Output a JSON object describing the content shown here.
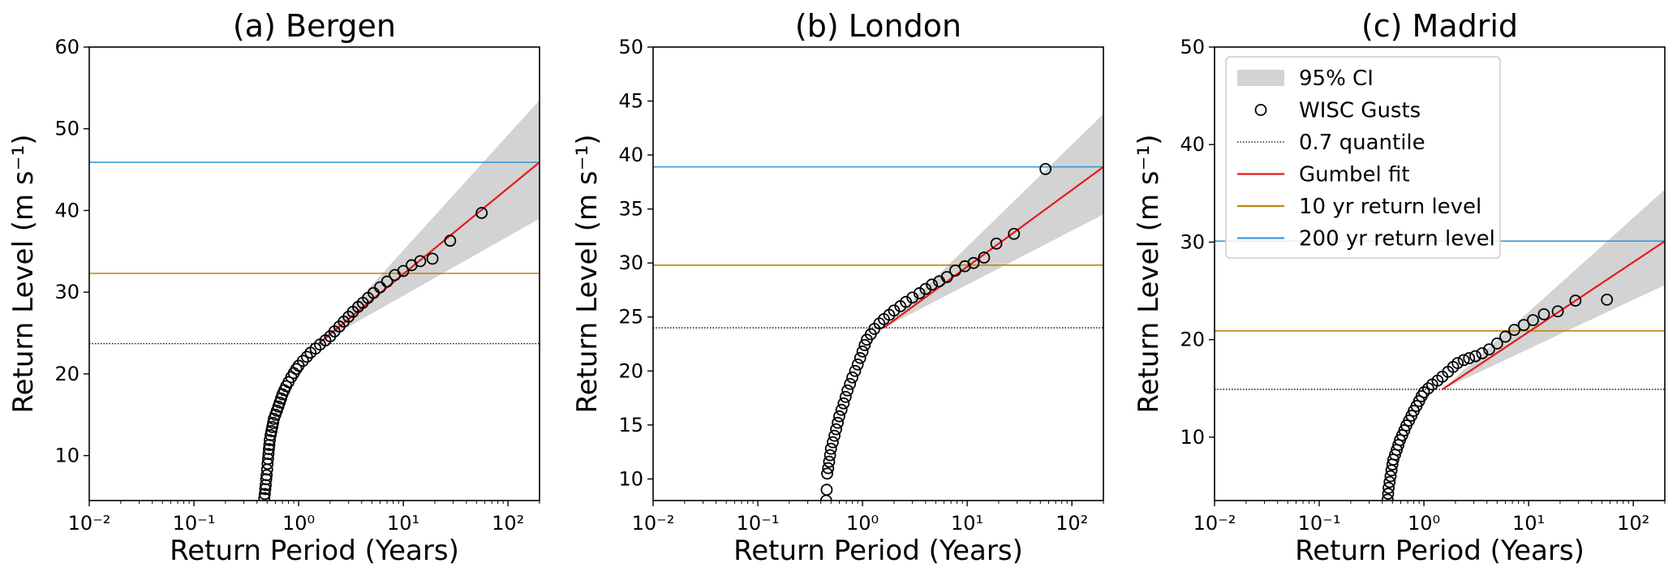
{
  "chart_data": [
    {
      "type": "scatter",
      "title": "(a) Bergen",
      "xlabel": "Return Period (Years)",
      "ylabel": "Return Level (m s⁻¹)",
      "xscale": "log",
      "xlim": [
        0.01,
        200
      ],
      "ylim": [
        4.5,
        60
      ],
      "yticks": [
        10,
        20,
        30,
        40,
        50,
        60
      ],
      "xticks": [
        "10⁻²",
        "10⁻¹",
        "10⁰",
        "10¹",
        "10²"
      ],
      "threshold_0_7_quantile": 23.7,
      "return_level_10yr": 32.3,
      "return_level_200yr": 45.9,
      "gumbel_fit": {
        "x": [
          1.55,
          200
        ],
        "y": [
          23.7,
          45.9
        ]
      },
      "ci_95": {
        "x": [
          1.55,
          200
        ],
        "lower": [
          23.7,
          39.0
        ],
        "upper": [
          23.7,
          53.5
        ]
      },
      "wisc_gusts": [
        [
          0.47,
          4.8
        ],
        [
          0.475,
          5.3
        ],
        [
          0.48,
          5.9
        ],
        [
          0.485,
          6.4
        ],
        [
          0.49,
          7.1
        ],
        [
          0.495,
          7.6
        ],
        [
          0.5,
          8.3
        ],
        [
          0.505,
          9.0
        ],
        [
          0.51,
          9.6
        ],
        [
          0.515,
          10.2
        ],
        [
          0.52,
          10.8
        ],
        [
          0.525,
          11.3
        ],
        [
          0.53,
          11.9
        ],
        [
          0.54,
          12.5
        ],
        [
          0.55,
          13.0
        ],
        [
          0.56,
          13.5
        ],
        [
          0.57,
          14.0
        ],
        [
          0.58,
          14.5
        ],
        [
          0.6,
          15.0
        ],
        [
          0.62,
          15.5
        ],
        [
          0.64,
          16.0
        ],
        [
          0.66,
          16.5
        ],
        [
          0.68,
          17.0
        ],
        [
          0.7,
          17.5
        ],
        [
          0.73,
          18.0
        ],
        [
          0.76,
          18.5
        ],
        [
          0.8,
          19.0
        ],
        [
          0.85,
          19.6
        ],
        [
          0.9,
          20.1
        ],
        [
          0.95,
          20.6
        ],
        [
          1.0,
          21.0
        ],
        [
          1.1,
          21.6
        ],
        [
          1.2,
          22.1
        ],
        [
          1.3,
          22.6
        ],
        [
          1.45,
          23.1
        ],
        [
          1.6,
          23.6
        ],
        [
          1.8,
          24.1
        ],
        [
          2.0,
          24.6
        ],
        [
          2.2,
          25.2
        ],
        [
          2.45,
          25.8
        ],
        [
          2.7,
          26.4
        ],
        [
          3.0,
          27.0
        ],
        [
          3.3,
          27.6
        ],
        [
          3.7,
          28.2
        ],
        [
          4.1,
          28.7
        ],
        [
          4.6,
          29.3
        ],
        [
          5.2,
          29.9
        ],
        [
          6.0,
          30.6
        ],
        [
          7.0,
          31.3
        ],
        [
          8.3,
          32.1
        ],
        [
          10.0,
          32.6
        ],
        [
          12.0,
          33.3
        ],
        [
          14.5,
          33.8
        ],
        [
          19.0,
          34.1
        ],
        [
          28.0,
          36.3
        ],
        [
          56.0,
          39.7
        ]
      ]
    },
    {
      "type": "scatter",
      "title": "(b) London",
      "xlabel": "Return Period (Years)",
      "ylabel": "Return Level (m s⁻¹)",
      "xscale": "log",
      "xlim": [
        0.01,
        200
      ],
      "ylim": [
        8,
        50
      ],
      "yticks": [
        10,
        15,
        20,
        25,
        30,
        35,
        40,
        45,
        50
      ],
      "xticks": [
        "10⁻²",
        "10⁻¹",
        "10⁰",
        "10¹",
        "10²"
      ],
      "threshold_0_7_quantile": 24.0,
      "return_level_10yr": 29.8,
      "return_level_200yr": 38.9,
      "gumbel_fit": {
        "x": [
          1.6,
          200
        ],
        "y": [
          24.0,
          38.9
        ]
      },
      "ci_95": {
        "x": [
          1.6,
          200
        ],
        "lower": [
          24.0,
          34.5
        ],
        "upper": [
          24.0,
          43.8
        ]
      },
      "wisc_gusts": [
        [
          0.45,
          8.0
        ],
        [
          0.455,
          9.0
        ],
        [
          0.46,
          10.5
        ],
        [
          0.47,
          11.0
        ],
        [
          0.48,
          11.6
        ],
        [
          0.49,
          12.2
        ],
        [
          0.5,
          12.8
        ],
        [
          0.52,
          13.4
        ],
        [
          0.54,
          14.0
        ],
        [
          0.56,
          14.6
        ],
        [
          0.58,
          15.2
        ],
        [
          0.6,
          15.8
        ],
        [
          0.63,
          16.4
        ],
        [
          0.66,
          17.0
        ],
        [
          0.69,
          17.6
        ],
        [
          0.72,
          18.2
        ],
        [
          0.76,
          18.8
        ],
        [
          0.8,
          19.4
        ],
        [
          0.85,
          20.0
        ],
        [
          0.9,
          20.6
        ],
        [
          0.95,
          21.2
        ],
        [
          1.0,
          21.8
        ],
        [
          1.05,
          22.4
        ],
        [
          1.1,
          22.9
        ],
        [
          1.2,
          23.4
        ],
        [
          1.3,
          23.9
        ],
        [
          1.45,
          24.4
        ],
        [
          1.6,
          24.8
        ],
        [
          1.8,
          25.2
        ],
        [
          2.0,
          25.6
        ],
        [
          2.3,
          26.0
        ],
        [
          2.6,
          26.4
        ],
        [
          3.0,
          26.8
        ],
        [
          3.5,
          27.2
        ],
        [
          4.0,
          27.6
        ],
        [
          4.6,
          28.0
        ],
        [
          5.4,
          28.3
        ],
        [
          6.4,
          28.7
        ],
        [
          7.7,
          29.3
        ],
        [
          9.5,
          29.7
        ],
        [
          11.5,
          30.0
        ],
        [
          14.5,
          30.5
        ],
        [
          19.0,
          31.8
        ],
        [
          28.0,
          32.7
        ],
        [
          56.0,
          38.7
        ]
      ]
    },
    {
      "type": "scatter",
      "title": "(c) Madrid",
      "xlabel": "Return Period (Years)",
      "ylabel": "Return Level (m s⁻¹)",
      "xscale": "log",
      "xlim": [
        0.01,
        200
      ],
      "ylim": [
        3.5,
        50
      ],
      "yticks": [
        10,
        20,
        30,
        40,
        50
      ],
      "xticks": [
        "10⁻²",
        "10⁻¹",
        "10⁰",
        "10¹",
        "10²"
      ],
      "threshold_0_7_quantile": 14.9,
      "return_level_10yr": 20.9,
      "return_level_200yr": 30.1,
      "gumbel_fit": {
        "x": [
          1.5,
          200
        ],
        "y": [
          14.9,
          30.1
        ]
      },
      "ci_95": {
        "x": [
          1.5,
          200
        ],
        "lower": [
          14.9,
          25.6
        ],
        "upper": [
          14.9,
          35.4
        ]
      },
      "wisc_gusts": [
        [
          0.45,
          3.6
        ],
        [
          0.455,
          4.2
        ],
        [
          0.46,
          4.8
        ],
        [
          0.47,
          5.4
        ],
        [
          0.48,
          6.0
        ],
        [
          0.49,
          6.6
        ],
        [
          0.5,
          7.2
        ],
        [
          0.51,
          7.7
        ],
        [
          0.53,
          8.2
        ],
        [
          0.55,
          8.7
        ],
        [
          0.57,
          9.2
        ],
        [
          0.59,
          9.7
        ],
        [
          0.62,
          10.2
        ],
        [
          0.65,
          10.7
        ],
        [
          0.68,
          11.2
        ],
        [
          0.72,
          11.7
        ],
        [
          0.76,
          12.2
        ],
        [
          0.8,
          12.7
        ],
        [
          0.85,
          13.2
        ],
        [
          0.9,
          13.7
        ],
        [
          0.95,
          14.2
        ],
        [
          1.0,
          14.6
        ],
        [
          1.1,
          15.0
        ],
        [
          1.2,
          15.4
        ],
        [
          1.35,
          15.8
        ],
        [
          1.5,
          16.2
        ],
        [
          1.7,
          16.7
        ],
        [
          1.9,
          17.2
        ],
        [
          2.1,
          17.6
        ],
        [
          2.4,
          17.9
        ],
        [
          2.7,
          18.1
        ],
        [
          3.1,
          18.3
        ],
        [
          3.6,
          18.6
        ],
        [
          4.2,
          19.0
        ],
        [
          5.0,
          19.6
        ],
        [
          6.0,
          20.3
        ],
        [
          7.3,
          21.0
        ],
        [
          9.0,
          21.5
        ],
        [
          11.0,
          22.0
        ],
        [
          14.0,
          22.6
        ],
        [
          19.0,
          22.9
        ],
        [
          28.0,
          24.0
        ],
        [
          56.0,
          24.1
        ]
      ]
    }
  ],
  "legend": {
    "placement": "top-left of panel (c)",
    "items": [
      {
        "label": "95% CI",
        "kind": "patch",
        "color": "#d3d3d3"
      },
      {
        "label": "WISC Gusts",
        "kind": "marker",
        "color": "#000000"
      },
      {
        "label": "0.7 quantile",
        "kind": "dotted",
        "color": "#000000"
      },
      {
        "label": "Gumbel fit",
        "kind": "line",
        "color": "#e41a1c"
      },
      {
        "label": "10 yr return level",
        "kind": "line",
        "color": "#b8860b"
      },
      {
        "label": "200 yr return level",
        "kind": "line",
        "color": "#3a9ad9"
      }
    ]
  },
  "colors": {
    "ci": "#d3d3d3",
    "gumbel": "#e41a1c",
    "rl10": "#b8860b",
    "rl200": "#3a9ad9",
    "quantile": "#000000"
  }
}
